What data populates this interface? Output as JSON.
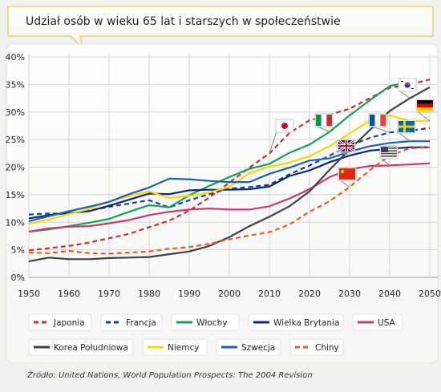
{
  "chart_data": {
    "type": "line",
    "title": "Udział osób w wieku 65 lat i starszych w społeczeństwie",
    "source": "Źródło: United Nations, World Population Prospects: The 2004 Revision",
    "x": [
      1950,
      1955,
      1960,
      1965,
      1970,
      1975,
      1980,
      1985,
      1990,
      1995,
      2000,
      2005,
      2010,
      2015,
      2020,
      2025,
      2030,
      2035,
      2040,
      2045,
      2050
    ],
    "x_ticks": [
      "1950",
      "1960",
      "1970",
      "1980",
      "1990",
      "2000",
      "2010",
      "2020",
      "2030",
      "2040",
      "2050"
    ],
    "y_ticks": [
      "0%",
      "5%",
      "10%",
      "15%",
      "20%",
      "25%",
      "30%",
      "35%",
      "40%"
    ],
    "xlim": [
      1950,
      2053
    ],
    "ylim": [
      0,
      40
    ],
    "grid": true,
    "legend_position": "bottom",
    "series": [
      {
        "name": "Japonia",
        "color": "#d42a2f",
        "dash": true,
        "flag": "japan",
        "values": [
          4.9,
          5.3,
          5.7,
          6.3,
          7.1,
          7.9,
          9.1,
          10.3,
          12.1,
          14.5,
          17.2,
          19.9,
          22.5,
          26.2,
          28.5,
          29.5,
          30.6,
          32.5,
          34.4,
          35.0,
          35.9
        ]
      },
      {
        "name": "Francja",
        "color": "#1d3f94",
        "dash": true,
        "flag": "france",
        "values": [
          11.4,
          11.6,
          11.6,
          12.1,
          12.8,
          13.4,
          14.0,
          12.7,
          14.0,
          15.1,
          16.1,
          16.4,
          16.8,
          18.7,
          20.3,
          22.1,
          23.9,
          25.3,
          26.3,
          26.6,
          27.1
        ]
      },
      {
        "name": "Włochy",
        "color": "#12a05a",
        "dash": false,
        "flag": "italy",
        "values": [
          8.3,
          8.7,
          9.3,
          9.9,
          10.6,
          11.9,
          13.1,
          12.7,
          14.9,
          16.6,
          18.2,
          19.7,
          20.6,
          22.6,
          24.1,
          26.4,
          29.4,
          32.1,
          34.7,
          35.5,
          null
        ]
      },
      {
        "name": "Wielka Brytania",
        "color": "#0b2a7c",
        "dash": false,
        "flag": "uk",
        "values": [
          10.7,
          11.3,
          11.7,
          12.0,
          13.0,
          14.1,
          15.2,
          15.1,
          15.8,
          15.9,
          15.9,
          16.0,
          16.5,
          18.4,
          19.4,
          20.9,
          22.1,
          23.0,
          23.3,
          23.6,
          23.6
        ]
      },
      {
        "name": "USA",
        "color": "#cf3a6a",
        "dash": false,
        "flag": "usa",
        "values": [
          8.3,
          8.9,
          9.2,
          9.3,
          9.8,
          10.4,
          11.3,
          11.9,
          12.3,
          12.5,
          12.3,
          12.3,
          12.9,
          14.3,
          16.0,
          18.2,
          19.6,
          20.2,
          20.3,
          20.5,
          20.7
        ]
      },
      {
        "name": "Korea Południowa",
        "color": "#414141",
        "dash": false,
        "flag": "korea",
        "values": [
          2.9,
          3.6,
          3.3,
          3.3,
          3.5,
          3.6,
          3.7,
          4.2,
          4.7,
          5.7,
          7.3,
          9.3,
          11.0,
          12.9,
          15.6,
          19.5,
          23.2,
          26.7,
          30.2,
          32.5,
          34.5
        ]
      },
      {
        "name": "Niemcy",
        "color": "#ffd400",
        "dash": false,
        "flag": "germany",
        "values": [
          9.7,
          10.5,
          11.5,
          12.4,
          13.7,
          14.8,
          15.6,
          14.4,
          14.8,
          15.4,
          16.4,
          18.9,
          20.1,
          20.8,
          22.0,
          23.8,
          26.1,
          28.4,
          29.4,
          28.4,
          28.4
        ]
      },
      {
        "name": "Szwecja",
        "color": "#1a63b4",
        "dash": false,
        "flag": "sweden",
        "values": [
          10.2,
          11.1,
          12.0,
          12.8,
          13.7,
          15.1,
          16.3,
          17.9,
          17.8,
          17.5,
          17.3,
          17.3,
          18.8,
          19.9,
          21.2,
          21.6,
          22.8,
          23.8,
          24.4,
          24.7,
          24.7
        ]
      },
      {
        "name": "Chiny",
        "color": "#ef5a24",
        "dash": true,
        "flag": "china",
        "values": [
          4.5,
          4.4,
          4.8,
          4.4,
          4.3,
          4.5,
          4.7,
          5.2,
          5.5,
          6.1,
          6.9,
          7.6,
          8.2,
          9.6,
          11.9,
          13.8,
          16.4,
          19.4,
          22.1,
          23.4,
          23.6
        ]
      }
    ]
  }
}
